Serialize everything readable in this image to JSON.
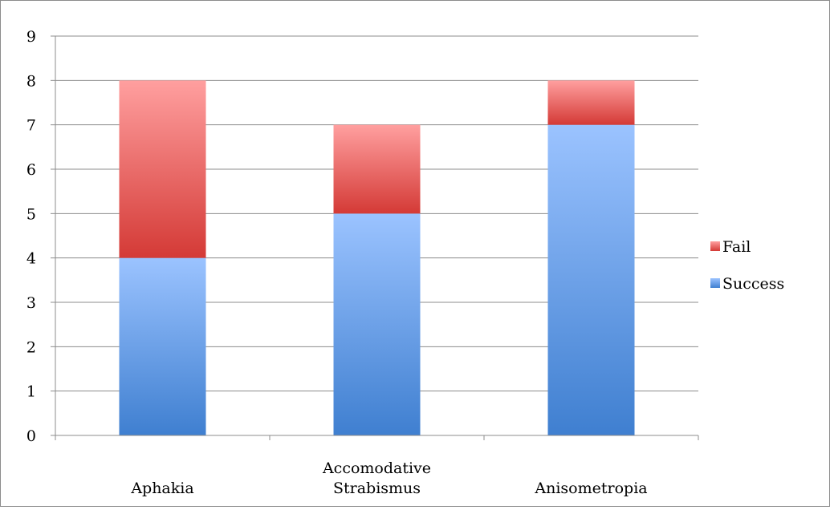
{
  "chart_data": {
    "type": "bar",
    "stacked": true,
    "categories": [
      "Aphakia",
      "Accomodative Strabismus",
      "Anisometropia"
    ],
    "category_lines": [
      [
        "Aphakia"
      ],
      [
        "Accomodative",
        "Strabismus"
      ],
      [
        "Anisometropia"
      ]
    ],
    "series": [
      {
        "name": "Success",
        "values": [
          4,
          5,
          7
        ],
        "color": "#5b93dd",
        "color_top": "#9bc3ff",
        "color_bottom": "#3f7fd0"
      },
      {
        "name": "Fail",
        "values": [
          4,
          2,
          1
        ],
        "color": "#e06666",
        "color_top": "#ff9f9f",
        "color_bottom": "#d43a36"
      }
    ],
    "legend_order": [
      "Fail",
      "Success"
    ],
    "title": "",
    "xlabel": "",
    "ylabel": "",
    "ylim": [
      0,
      9
    ],
    "yticks": [
      0,
      1,
      2,
      3,
      4,
      5,
      6,
      7,
      8,
      9
    ],
    "grid": true,
    "legend_position": "right"
  }
}
